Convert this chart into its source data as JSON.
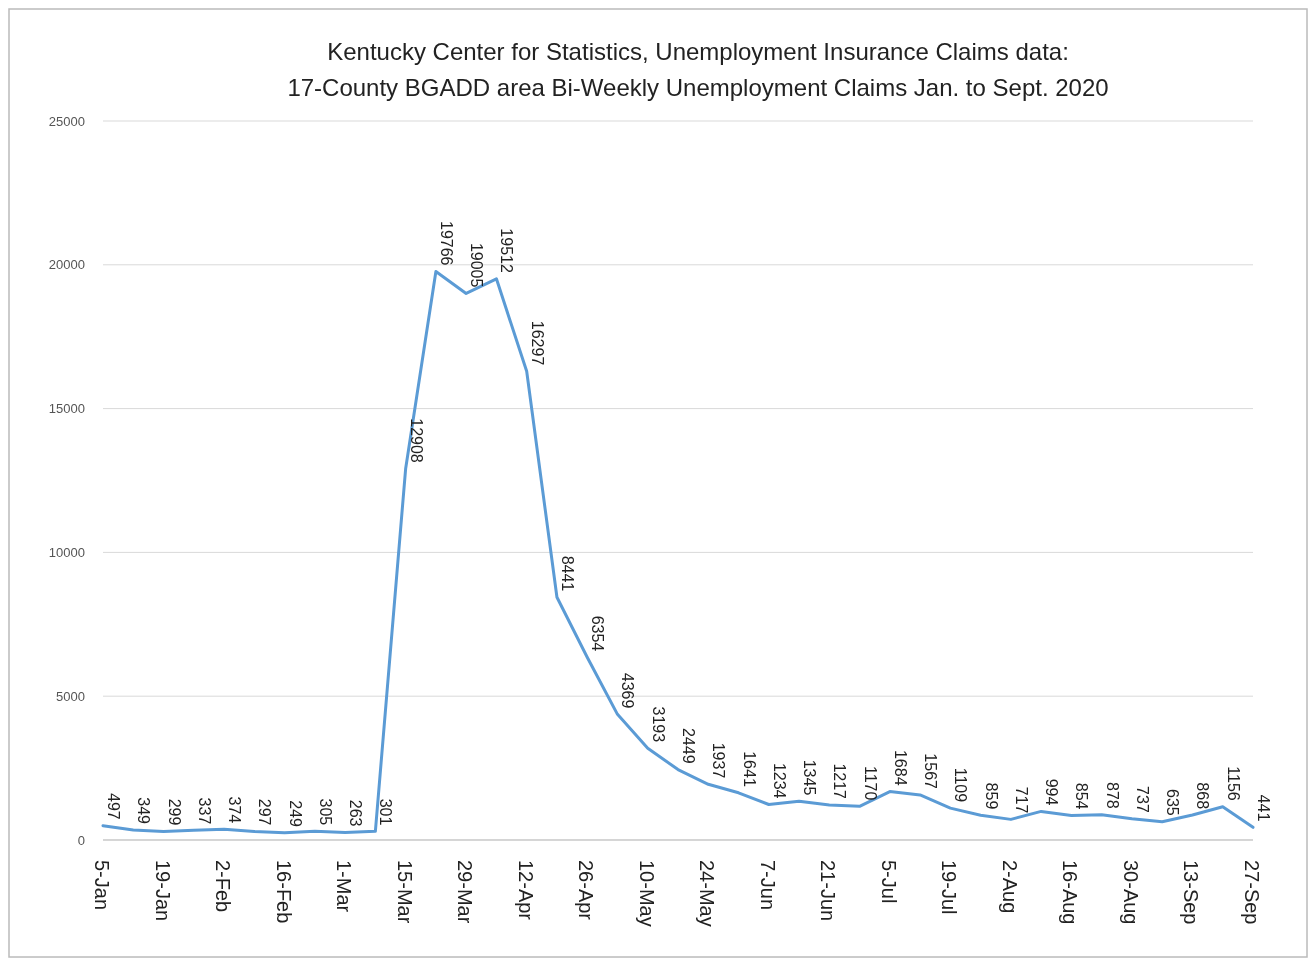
{
  "chart_data": {
    "type": "line",
    "title": "Kentucky Center for Statistics, Unemployment  Insurance  Claims data:\n17-County BGADD area Bi-Weekly Unemployment  Claims Jan. to Sept. 2020",
    "categories": [
      "5-Jan",
      null,
      "19-Jan",
      null,
      "2-Feb",
      null,
      "16-Feb",
      null,
      "1-Mar",
      null,
      "15-Mar",
      null,
      "29-Mar",
      null,
      "12-Apr",
      null,
      "26-Apr",
      null,
      "10-May",
      null,
      "24-May",
      null,
      "7-Jun",
      null,
      "21-Jun",
      null,
      "5-Jul",
      null,
      "19-Jul",
      null,
      "2-Aug",
      null,
      "16-Aug",
      null,
      "30-Aug",
      null,
      "13-Sep",
      null,
      "27-Sep"
    ],
    "series": [
      {
        "color": "#5b9bd5",
        "values": [
          497,
          349,
          299,
          337,
          374,
          297,
          249,
          305,
          263,
          301,
          12908,
          19766,
          19005,
          19512,
          16297,
          8441,
          6354,
          4369,
          3193,
          2449,
          1937,
          1641,
          1234,
          1345,
          1217,
          1170,
          1684,
          1567,
          1109,
          859,
          717,
          994,
          854,
          878,
          737,
          635,
          868,
          1156,
          441
        ]
      }
    ],
    "ylim": [
      0,
      25000
    ],
    "yticks": [
      0,
      5000,
      10000,
      15000,
      20000,
      25000
    ],
    "grid": "y",
    "data_labels": true,
    "marker": "none",
    "line_style": "solid"
  }
}
